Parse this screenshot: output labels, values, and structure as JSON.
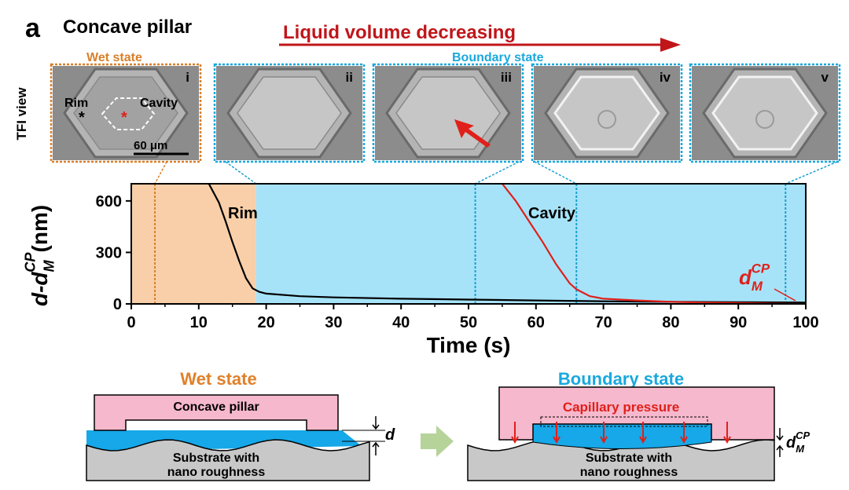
{
  "panel_label": "a",
  "title": "Concave pillar",
  "arrow_label": "Liquid volume decreasing",
  "wet_label": "Wet state",
  "boundary_label": "Boundary state",
  "side_label": "TFI view",
  "images": [
    {
      "numeral": "i",
      "rim": "Rim",
      "cavity": "Cavity",
      "scale": "60 μm"
    },
    {
      "numeral": "ii"
    },
    {
      "numeral": "iii"
    },
    {
      "numeral": "iv"
    },
    {
      "numeral": "v"
    }
  ],
  "chart_data": {
    "type": "line",
    "xlabel": "Time (s)",
    "ylabel": {
      "main": "d-d",
      "sub": "M",
      "sup": "CP",
      "unit": "(nm)"
    },
    "xlim": [
      0,
      100
    ],
    "xticks": [
      0,
      10,
      20,
      30,
      40,
      50,
      60,
      70,
      80,
      90,
      100
    ],
    "ylim": [
      0,
      700
    ],
    "yticks": [
      0,
      300,
      600
    ],
    "regions": [
      {
        "from": 0,
        "to": 18.5,
        "color": "#f8cfa8"
      },
      {
        "from": 18.5,
        "to": 100,
        "color": "#a6e3f9"
      }
    ],
    "markers": [
      {
        "x": 3.5,
        "color": "#d9802a"
      },
      {
        "x": 51,
        "color": "#1a9fd0"
      },
      {
        "x": 66,
        "color": "#1a9fd0"
      },
      {
        "x": 97,
        "color": "#1a9fd0"
      }
    ],
    "series": [
      {
        "name": "Rim",
        "color": "#000000",
        "x": [
          11.5,
          13,
          14,
          15,
          16,
          17,
          18,
          19,
          20,
          25,
          30,
          40,
          50,
          60,
          70,
          80,
          90,
          100
        ],
        "values": [
          700,
          590,
          480,
          360,
          250,
          150,
          90,
          70,
          60,
          45,
          38,
          30,
          25,
          20,
          15,
          12,
          10,
          8
        ]
      },
      {
        "name": "Cavity",
        "color": "#e0201a",
        "x": [
          55,
          57,
          59,
          61,
          63,
          65,
          66,
          68,
          70,
          75,
          80,
          85,
          90,
          95,
          99
        ],
        "values": [
          700,
          600,
          480,
          360,
          230,
          120,
          85,
          45,
          30,
          20,
          12,
          8,
          5,
          2,
          0
        ]
      }
    ],
    "annotation": {
      "main": "d",
      "sub": "M",
      "sup": "CP"
    }
  },
  "diagrams": {
    "wet": {
      "title": "Wet state",
      "pillar": "Concave pillar",
      "gap": "d",
      "substrate": [
        "Substrate with",
        "nano roughness"
      ]
    },
    "boundary": {
      "title": "Boundary state",
      "pressure": "Capillary pressure",
      "gap": {
        "main": "d",
        "sub": "M",
        "sup": "CP"
      },
      "substrate": [
        "Substrate with",
        "nano roughness"
      ]
    }
  }
}
